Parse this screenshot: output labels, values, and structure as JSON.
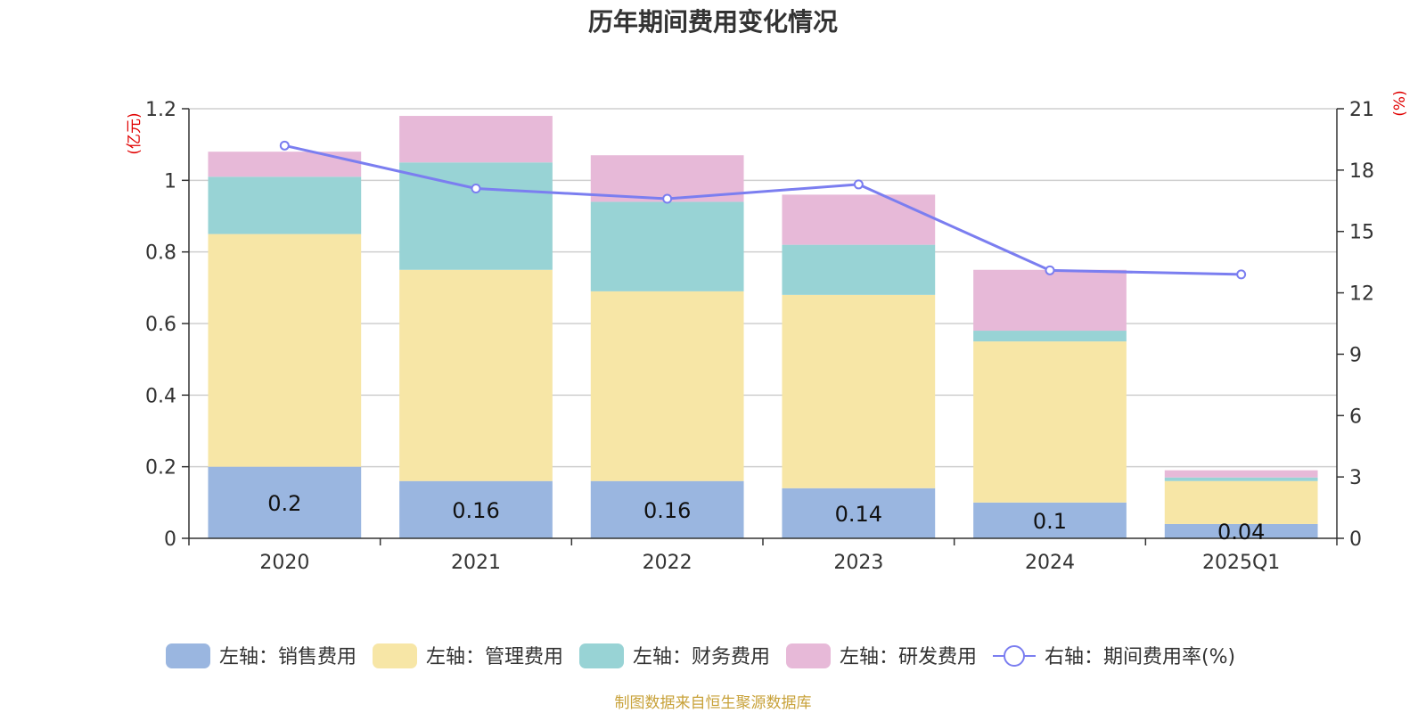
{
  "chart_data": {
    "type": "bar",
    "title": "历年期间费用变化情况",
    "categories": [
      "2020",
      "2021",
      "2022",
      "2023",
      "2024",
      "2025Q1"
    ],
    "series": [
      {
        "name": "左轴：销售费用",
        "axis": "left",
        "type": "bar",
        "color": "#9ab6e0",
        "values": [
          0.2,
          0.16,
          0.16,
          0.14,
          0.1,
          0.04
        ]
      },
      {
        "name": "左轴：管理费用",
        "axis": "left",
        "type": "bar",
        "color": "#f7e6a6",
        "values": [
          0.65,
          0.59,
          0.53,
          0.54,
          0.45,
          0.12
        ]
      },
      {
        "name": "左轴：财务费用",
        "axis": "left",
        "type": "bar",
        "color": "#98d3d5",
        "values": [
          0.16,
          0.3,
          0.25,
          0.14,
          0.03,
          0.01
        ]
      },
      {
        "name": "左轴：研发费用",
        "axis": "left",
        "type": "bar",
        "color": "#e7b9d8",
        "values": [
          0.07,
          0.13,
          0.13,
          0.14,
          0.17,
          0.02
        ]
      },
      {
        "name": "右轴：期间费用率(%)",
        "axis": "right",
        "type": "line",
        "color": "#7b7ef0",
        "values": [
          19.2,
          17.1,
          16.6,
          17.3,
          13.1,
          12.9
        ]
      }
    ],
    "data_labels": [
      "0.2",
      "0.16",
      "0.16",
      "0.14",
      "0.1",
      "0.04"
    ],
    "y_left": {
      "unit": "(亿元)",
      "range": [
        0,
        1.2
      ],
      "ticks": [
        "0",
        "0.2",
        "0.4",
        "0.6",
        "0.8",
        "1",
        "1.2"
      ]
    },
    "y_right": {
      "unit": "(%)",
      "range": [
        0,
        21
      ],
      "ticks": [
        "0",
        "3",
        "6",
        "9",
        "12",
        "15",
        "18",
        "21"
      ]
    },
    "grid": true,
    "legend_position": "bottom",
    "source": "制图数据来自恒生聚源数据库"
  }
}
